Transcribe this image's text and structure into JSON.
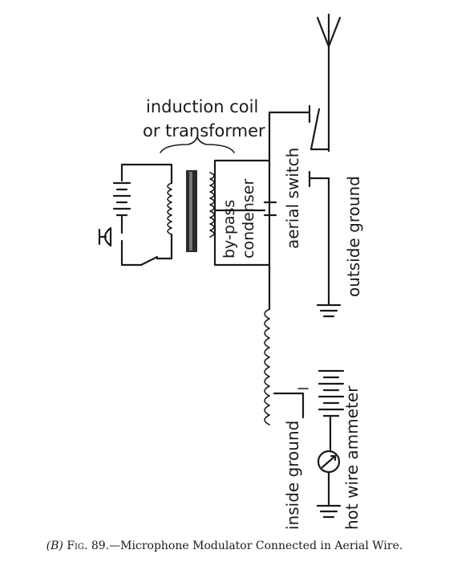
{
  "diagram": {
    "labels": {
      "induction_coil_line1": "induction coil",
      "induction_coil_line2": "or transformer",
      "bypass_condenser_line1": "by-pass",
      "bypass_condenser_line2": "condenser",
      "aerial_switch": "aerial switch",
      "outside_ground": "outside ground",
      "inside_ground": "inside ground",
      "hot_wire_ammeter": "hot wire ammeter"
    }
  },
  "caption": {
    "prefix": "(B)",
    "fig": "Fig. 89.",
    "text": "—Microphone Modulator Connected in Aerial Wire."
  }
}
